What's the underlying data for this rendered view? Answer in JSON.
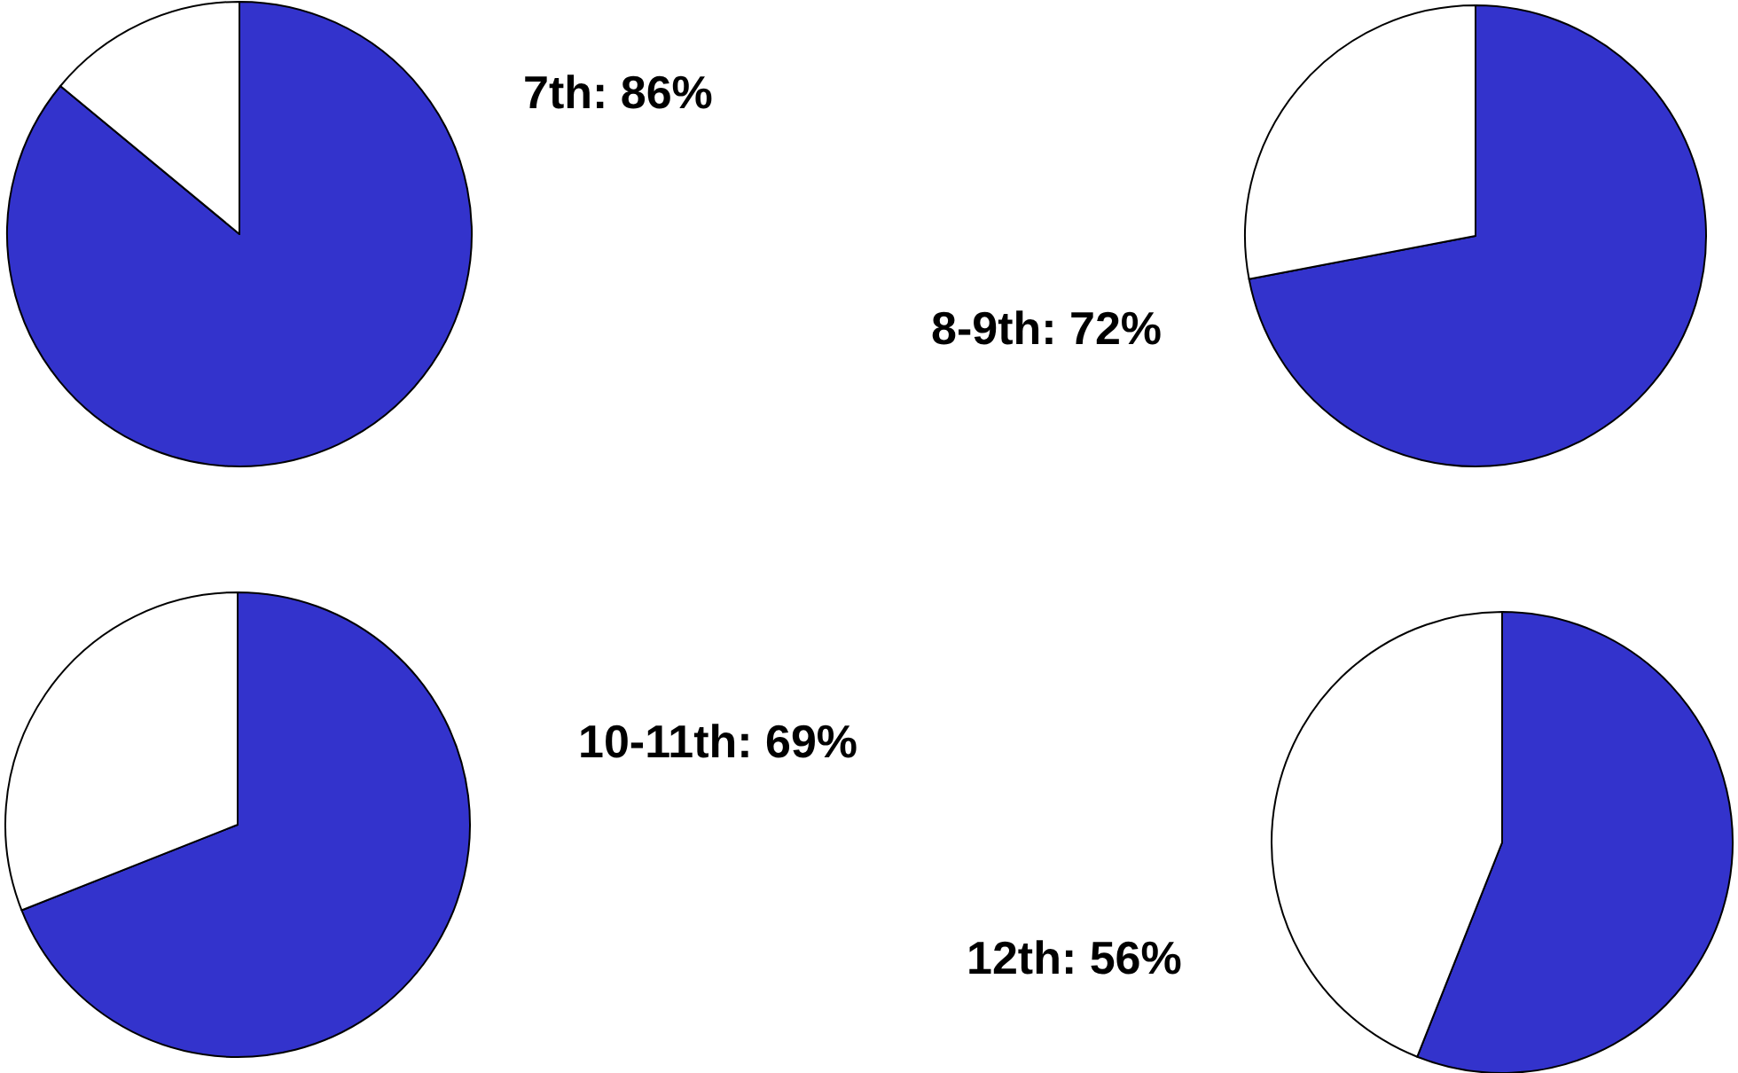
{
  "chart_data": [
    {
      "type": "pie",
      "title": "7th: 86%",
      "categories": [
        null,
        null
      ],
      "values": [
        86,
        14
      ],
      "colors": [
        "#3333cc",
        "#ffffff"
      ]
    },
    {
      "type": "pie",
      "title": "8-9th: 72%",
      "categories": [
        null,
        null
      ],
      "values": [
        72,
        28
      ],
      "colors": [
        "#3333cc",
        "#ffffff"
      ]
    },
    {
      "type": "pie",
      "title": "10-11th: 69%",
      "categories": [
        null,
        null
      ],
      "values": [
        69,
        31
      ],
      "colors": [
        "#3333cc",
        "#ffffff"
      ]
    },
    {
      "type": "pie",
      "title": "12th: 56%",
      "categories": [
        null,
        null
      ],
      "values": [
        56,
        44
      ],
      "colors": [
        "#3333cc",
        "#ffffff"
      ]
    }
  ]
}
